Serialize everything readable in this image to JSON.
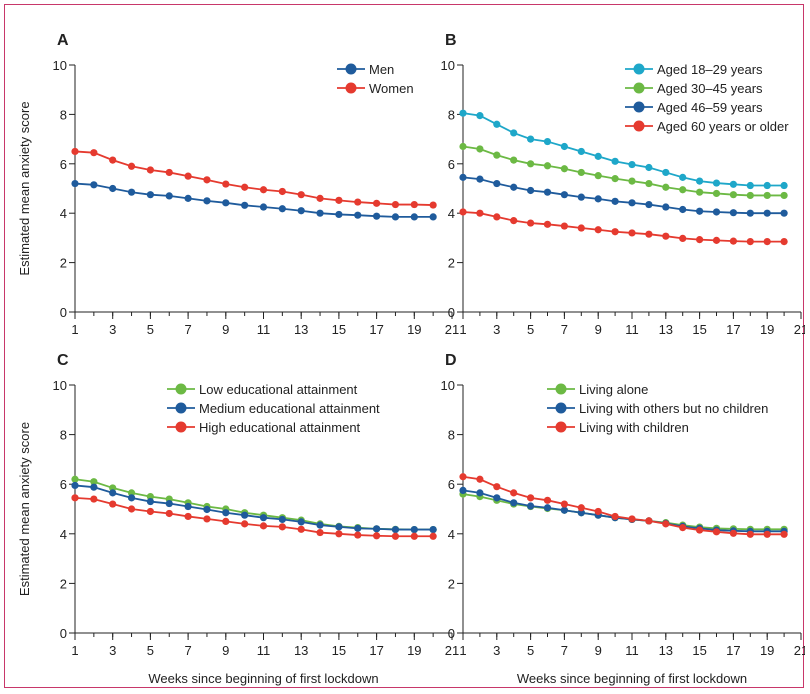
{
  "colors": {
    "frame": "#c8376a",
    "red": "#e53a2f",
    "navy": "#1f5b9c",
    "cyan": "#1ea7c9",
    "green": "#6cb944",
    "axis": "#222222"
  },
  "shared": {
    "ylabel": "Estimated mean anxiety score",
    "xlabel": "Weeks since beginning of first lockdown"
  },
  "chart_data": [
    {
      "panel": "A",
      "type": "line",
      "legend_position": "top-right",
      "x": [
        1,
        2,
        3,
        4,
        5,
        6,
        7,
        8,
        9,
        10,
        11,
        12,
        13,
        14,
        15,
        16,
        17,
        18,
        19,
        20
      ],
      "xticks": [
        1,
        3,
        5,
        7,
        9,
        11,
        13,
        15,
        17,
        19,
        21
      ],
      "yticks": [
        0,
        2,
        4,
        6,
        8,
        10
      ],
      "xlim": [
        1,
        21
      ],
      "ylim": [
        0,
        10
      ],
      "series": [
        {
          "name": "Men",
          "color": "navy",
          "values": [
            5.2,
            5.15,
            5.0,
            4.85,
            4.75,
            4.7,
            4.6,
            4.5,
            4.42,
            4.32,
            4.25,
            4.18,
            4.1,
            4.0,
            3.95,
            3.92,
            3.88,
            3.85,
            3.85,
            3.85
          ]
        },
        {
          "name": "Women",
          "color": "red",
          "values": [
            6.5,
            6.45,
            6.15,
            5.9,
            5.75,
            5.65,
            5.5,
            5.35,
            5.18,
            5.05,
            4.95,
            4.88,
            4.75,
            4.6,
            4.52,
            4.45,
            4.4,
            4.35,
            4.35,
            4.33
          ]
        }
      ]
    },
    {
      "panel": "B",
      "type": "line",
      "legend_position": "top-right",
      "x": [
        1,
        2,
        3,
        4,
        5,
        6,
        7,
        8,
        9,
        10,
        11,
        12,
        13,
        14,
        15,
        16,
        17,
        18,
        19,
        20
      ],
      "xticks": [
        1,
        3,
        5,
        7,
        9,
        11,
        13,
        15,
        17,
        19,
        21
      ],
      "yticks": [
        0,
        2,
        4,
        6,
        8,
        10
      ],
      "xlim": [
        1,
        21
      ],
      "ylim": [
        0,
        10
      ],
      "series": [
        {
          "name": "Aged 18–29 years",
          "color": "cyan",
          "values": [
            8.05,
            7.95,
            7.6,
            7.25,
            7.0,
            6.9,
            6.7,
            6.5,
            6.3,
            6.1,
            5.97,
            5.85,
            5.65,
            5.45,
            5.3,
            5.22,
            5.17,
            5.12,
            5.12,
            5.12
          ]
        },
        {
          "name": "Aged 30–45 years",
          "color": "green",
          "values": [
            6.7,
            6.6,
            6.35,
            6.15,
            6.0,
            5.92,
            5.8,
            5.65,
            5.52,
            5.4,
            5.3,
            5.2,
            5.05,
            4.95,
            4.85,
            4.8,
            4.75,
            4.72,
            4.72,
            4.72
          ]
        },
        {
          "name": "Aged 46–59 years",
          "color": "navy",
          "values": [
            5.45,
            5.38,
            5.2,
            5.05,
            4.92,
            4.85,
            4.75,
            4.65,
            4.58,
            4.48,
            4.42,
            4.35,
            4.25,
            4.15,
            4.08,
            4.05,
            4.02,
            4.0,
            4.0,
            4.0
          ]
        },
        {
          "name": "Aged 60 years or older",
          "color": "red",
          "values": [
            4.05,
            4.0,
            3.85,
            3.7,
            3.6,
            3.55,
            3.48,
            3.4,
            3.33,
            3.25,
            3.2,
            3.15,
            3.07,
            2.98,
            2.93,
            2.9,
            2.87,
            2.85,
            2.85,
            2.85
          ]
        }
      ]
    },
    {
      "panel": "C",
      "type": "line",
      "legend_position": "top-right",
      "x": [
        1,
        2,
        3,
        4,
        5,
        6,
        7,
        8,
        9,
        10,
        11,
        12,
        13,
        14,
        15,
        16,
        17,
        18,
        19,
        20
      ],
      "xticks": [
        1,
        3,
        5,
        7,
        9,
        11,
        13,
        15,
        17,
        19,
        21
      ],
      "yticks": [
        0,
        2,
        4,
        6,
        8,
        10
      ],
      "xlim": [
        1,
        21
      ],
      "ylim": [
        0,
        10
      ],
      "series": [
        {
          "name": "Low educational attainment",
          "color": "green",
          "values": [
            6.2,
            6.1,
            5.85,
            5.65,
            5.5,
            5.4,
            5.25,
            5.1,
            5.0,
            4.85,
            4.75,
            4.65,
            4.55,
            4.4,
            4.3,
            4.25,
            4.2,
            4.18,
            4.17,
            4.17
          ]
        },
        {
          "name": "Medium educational attainment",
          "color": "navy",
          "values": [
            5.95,
            5.88,
            5.65,
            5.45,
            5.3,
            5.22,
            5.1,
            4.98,
            4.85,
            4.75,
            4.65,
            4.58,
            4.48,
            4.35,
            4.28,
            4.22,
            4.2,
            4.17,
            4.17,
            4.17
          ]
        },
        {
          "name": "High educational attainment",
          "color": "red",
          "values": [
            5.45,
            5.4,
            5.2,
            5.0,
            4.9,
            4.82,
            4.7,
            4.6,
            4.5,
            4.4,
            4.32,
            4.28,
            4.18,
            4.05,
            4.0,
            3.95,
            3.92,
            3.9,
            3.9,
            3.9
          ]
        }
      ]
    },
    {
      "panel": "D",
      "type": "line",
      "legend_position": "top-right",
      "x": [
        1,
        2,
        3,
        4,
        5,
        6,
        7,
        8,
        9,
        10,
        11,
        12,
        13,
        14,
        15,
        16,
        17,
        18,
        19,
        20
      ],
      "xticks": [
        1,
        3,
        5,
        7,
        9,
        11,
        13,
        15,
        17,
        19,
        21
      ],
      "yticks": [
        0,
        2,
        4,
        6,
        8,
        10
      ],
      "xlim": [
        1,
        21
      ],
      "ylim": [
        0,
        10
      ],
      "series": [
        {
          "name": "Living alone",
          "color": "green",
          "values": [
            5.6,
            5.5,
            5.35,
            5.2,
            5.1,
            5.02,
            4.95,
            4.85,
            4.75,
            4.65,
            4.58,
            4.52,
            4.45,
            4.35,
            4.27,
            4.22,
            4.2,
            4.18,
            4.18,
            4.18
          ]
        },
        {
          "name": "Living with others but no children",
          "color": "navy",
          "values": [
            5.75,
            5.65,
            5.45,
            5.25,
            5.12,
            5.05,
            4.95,
            4.85,
            4.75,
            4.65,
            4.58,
            4.52,
            4.42,
            4.3,
            4.22,
            4.15,
            4.12,
            4.1,
            4.1,
            4.1
          ]
        },
        {
          "name": "Living with children",
          "color": "red",
          "values": [
            6.3,
            6.2,
            5.9,
            5.65,
            5.45,
            5.35,
            5.2,
            5.05,
            4.9,
            4.7,
            4.6,
            4.52,
            4.4,
            4.25,
            4.15,
            4.08,
            4.02,
            3.98,
            3.98,
            3.98
          ]
        }
      ]
    }
  ]
}
